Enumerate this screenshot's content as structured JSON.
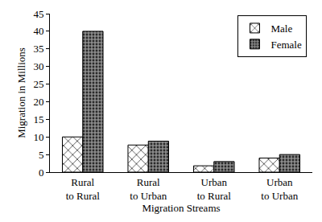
{
  "chart_data": {
    "type": "bar",
    "x_label": "Migration Streams",
    "y_label": "Migration in Millions",
    "categories": [
      "Rural to Rural",
      "Rural to Urban",
      "Urban to Rural",
      "Urban to Urban"
    ],
    "series": [
      {
        "name": "Male",
        "color": "#ffffff",
        "marker": "crosshatch",
        "values": [
          10,
          7.7,
          1.8,
          4
        ]
      },
      {
        "name": "Female",
        "color": "#8c8c8c",
        "marker": "dots",
        "values": [
          40,
          8.8,
          3,
          5
        ]
      }
    ],
    "ylim": [
      0,
      45
    ],
    "yticks": [
      0,
      5,
      10,
      15,
      20,
      25,
      30,
      35,
      40,
      45
    ],
    "grid": false,
    "legend": "top right"
  }
}
